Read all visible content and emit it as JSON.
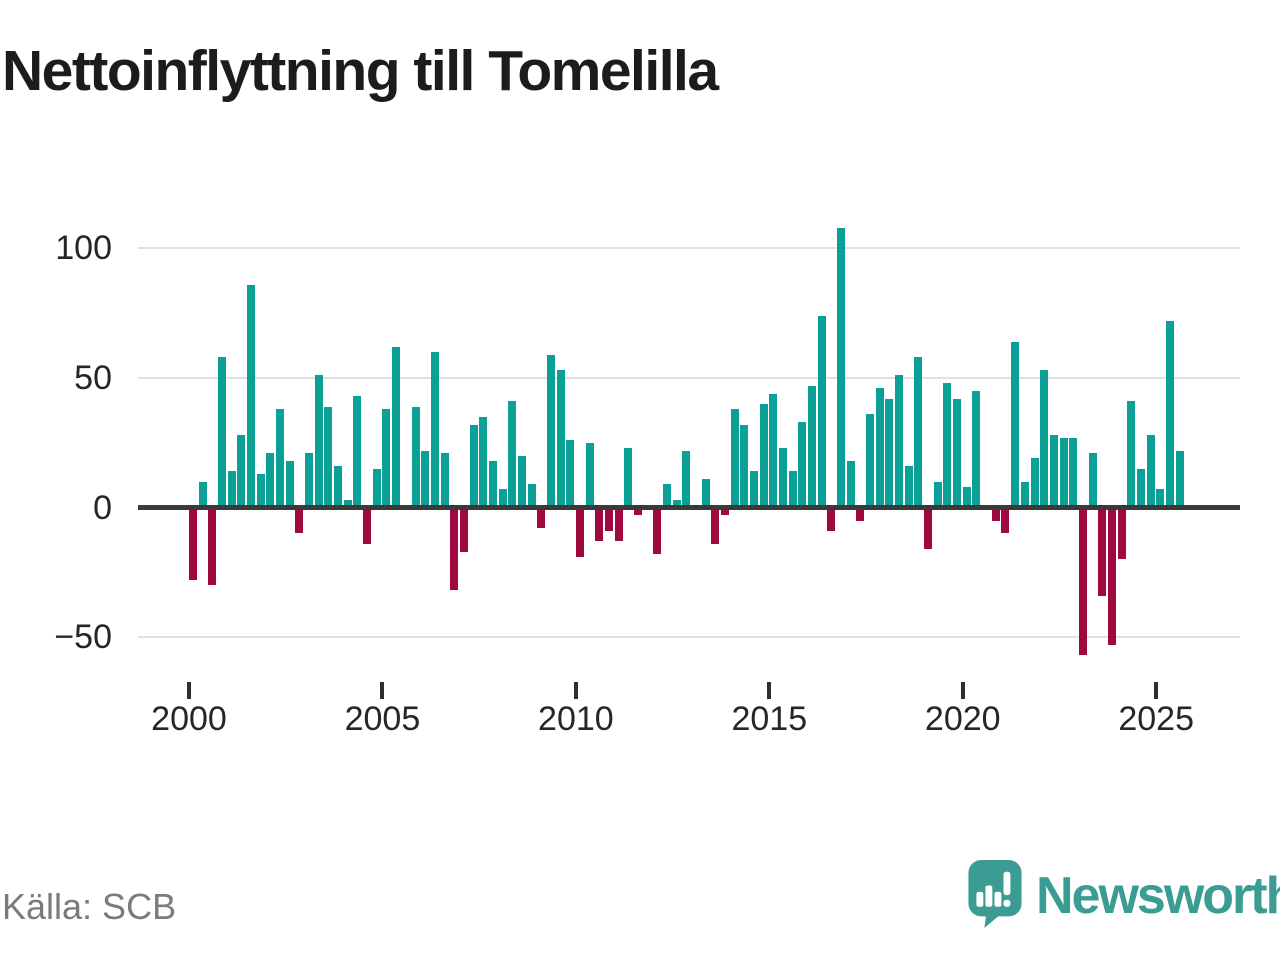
{
  "title": "Nettoinflyttning till Tomelilla",
  "source_label": "Källa: SCB",
  "brand": {
    "name": "Newsworthy",
    "color": "#3b9c94"
  },
  "colors": {
    "positive_bar": "#0aa096",
    "negative_bar": "#9e0a40",
    "gridline": "#e1e1e1",
    "zero_axis": "#3a3a3a",
    "text": "#262626",
    "title_text": "#1c1c1c",
    "source_text": "#7b7b7b"
  },
  "chart_data": {
    "type": "bar",
    "title": "Nettoinflyttning till Tomelilla",
    "frequency": "quarterly",
    "start_period": "2000Q1",
    "end_period": "2025Q3",
    "ylim": [
      -60,
      110
    ],
    "grid": "horizontal",
    "y_ticks": [
      {
        "label": "100",
        "value": 100
      },
      {
        "label": "50",
        "value": 50
      },
      {
        "label": "0",
        "value": 0
      },
      {
        "label": "−50",
        "value": -50
      }
    ],
    "x_ticks": [
      {
        "label": "2000",
        "year": 2000
      },
      {
        "label": "2005",
        "year": 2005
      },
      {
        "label": "2010",
        "year": 2010
      },
      {
        "label": "2015",
        "year": 2015
      },
      {
        "label": "2020",
        "year": 2020
      },
      {
        "label": "2025",
        "year": 2025
      }
    ],
    "values_by_year": {
      "2000": [
        -28,
        10,
        -30,
        58
      ],
      "2001": [
        14,
        28,
        86,
        13
      ],
      "2002": [
        21,
        38,
        18,
        -10
      ],
      "2003": [
        21,
        51,
        39,
        16
      ],
      "2004": [
        3,
        43,
        -14,
        15
      ],
      "2005": [
        38,
        62,
        0,
        39
      ],
      "2006": [
        22,
        60,
        21,
        -32
      ],
      "2007": [
        -17,
        32,
        35,
        18
      ],
      "2008": [
        7,
        41,
        20,
        9
      ],
      "2009": [
        -8,
        59,
        53,
        26
      ],
      "2010": [
        -19,
        25,
        -13,
        -9
      ],
      "2011": [
        -13,
        23,
        -3,
        0
      ],
      "2012": [
        -18,
        9,
        3,
        22
      ],
      "2013": [
        1,
        11,
        -14,
        -3
      ],
      "2014": [
        38,
        32,
        14,
        40
      ],
      "2015": [
        44,
        23,
        14,
        33
      ],
      "2016": [
        47,
        74,
        -9,
        108
      ],
      "2017": [
        18,
        -5,
        36,
        46
      ],
      "2018": [
        42,
        51,
        16,
        58
      ],
      "2019": [
        -16,
        10,
        48,
        42
      ],
      "2020": [
        8,
        45,
        0,
        -5
      ],
      "2021": [
        -10,
        64,
        10,
        19
      ],
      "2022": [
        53,
        28,
        27,
        27
      ],
      "2023": [
        -57,
        21,
        -34,
        -53
      ],
      "2024": [
        -20,
        41,
        15,
        28
      ],
      "2025": [
        7,
        72,
        22
      ]
    }
  }
}
